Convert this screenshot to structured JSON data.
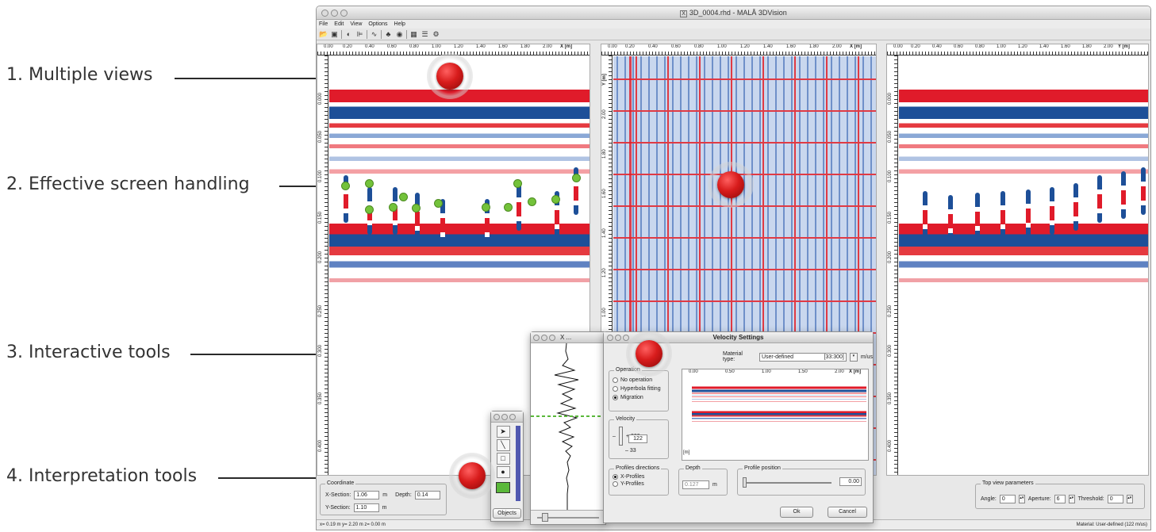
{
  "callouts": [
    {
      "label": "1. Multiple views"
    },
    {
      "label": "2. Effective screen handling"
    },
    {
      "label": "3. Interactive tools"
    },
    {
      "label": "4. Interpretation tools"
    }
  ],
  "window": {
    "title": "3D_0004.rhd - MALÅ 3DVision",
    "menu": [
      "File",
      "Edit",
      "View",
      "Options",
      "Help"
    ]
  },
  "panels": {
    "left": {
      "axis_label": "X [m]",
      "ticks": [
        "0.00",
        "0.20",
        "0.40",
        "0.60",
        "0.80",
        "1.00",
        "1.20",
        "1.40",
        "1.60",
        "1.80",
        "2.00"
      ],
      "depth_ticks": [
        "0.000",
        "0.050",
        "0.100",
        "0.150",
        "0.200",
        "0.250",
        "0.300",
        "0.350",
        "0.400"
      ]
    },
    "middle": {
      "axis_label": "X [m]",
      "y_label": "Y [m]",
      "ticks": [
        "0.00",
        "0.20",
        "0.40",
        "0.60",
        "0.80",
        "1.00",
        "1.20",
        "1.40",
        "1.60",
        "1.80",
        "2.00"
      ],
      "y_ticks": [
        "2.00",
        "1.80",
        "1.60",
        "1.40",
        "1.20",
        "1.00",
        "0.80",
        "0.60",
        "0.40"
      ]
    },
    "right": {
      "axis_label": "Y [m]",
      "ticks": [
        "0.00",
        "0.20",
        "0.40",
        "0.60",
        "0.80",
        "1.00",
        "1.20",
        "1.40",
        "1.60",
        "1.80",
        "2.00"
      ],
      "depth_ticks": [
        "0.000",
        "0.050",
        "0.100",
        "0.150",
        "0.200",
        "0.250",
        "0.300",
        "0.350",
        "0.400"
      ]
    }
  },
  "coordinate": {
    "legend": "Coordinate",
    "x_section_label": "X-Section:",
    "x_section_value": "1.06",
    "x_unit": "m",
    "depth_label": "Depth:",
    "depth_value": "0.14",
    "y_section_label": "Y-Section:",
    "y_section_value": "1.10",
    "y_unit": "m"
  },
  "top_view": {
    "legend": "Top view parameters",
    "angle_label": "Angle:",
    "angle_value": "0",
    "aperture_label": "Aperture:",
    "aperture_value": "6",
    "threshold_label": "Threshold:",
    "threshold_value": "0"
  },
  "status": {
    "left": "x= 0.19 m  y= 2.20 m  z= 0.00 m",
    "right": "Material: User-defined (122 m/us)"
  },
  "tools_window": {
    "objects_button": "Objects",
    "color": "#5ab83a"
  },
  "trace_window": {
    "title": "X ..."
  },
  "velocity": {
    "title": "Velocity Settings",
    "material_label": "Material type:",
    "material_value": "User-defined",
    "material_range": "[33:300]",
    "material_unit": "m/us",
    "operation_legend": "Operation",
    "operations": [
      "No operation",
      "Hyperbola fitting",
      "Migration"
    ],
    "velocity_legend": "Velocity",
    "velocity_max": "300",
    "velocity_value": "122",
    "velocity_min": "33",
    "profiles_legend": "Profiles directions",
    "profiles": [
      "X-Profiles",
      "Y-Profiles"
    ],
    "depth_legend": "Depth",
    "depth_value": "0.127",
    "depth_unit": "m",
    "position_legend": "Profile position",
    "position_value": "0.00",
    "preview_ticks": [
      "0.00",
      "0.50",
      "1.00",
      "1.50",
      "2.00"
    ],
    "preview_axis": "X [m]",
    "preview_side": "[m]",
    "ok": "Ok",
    "cancel": "Cancel"
  },
  "colors": {
    "marker": "#d81c1c",
    "gpr_red": "#e01b2a",
    "gpr_blue": "#1d4f98",
    "pick": "#73c23a"
  }
}
